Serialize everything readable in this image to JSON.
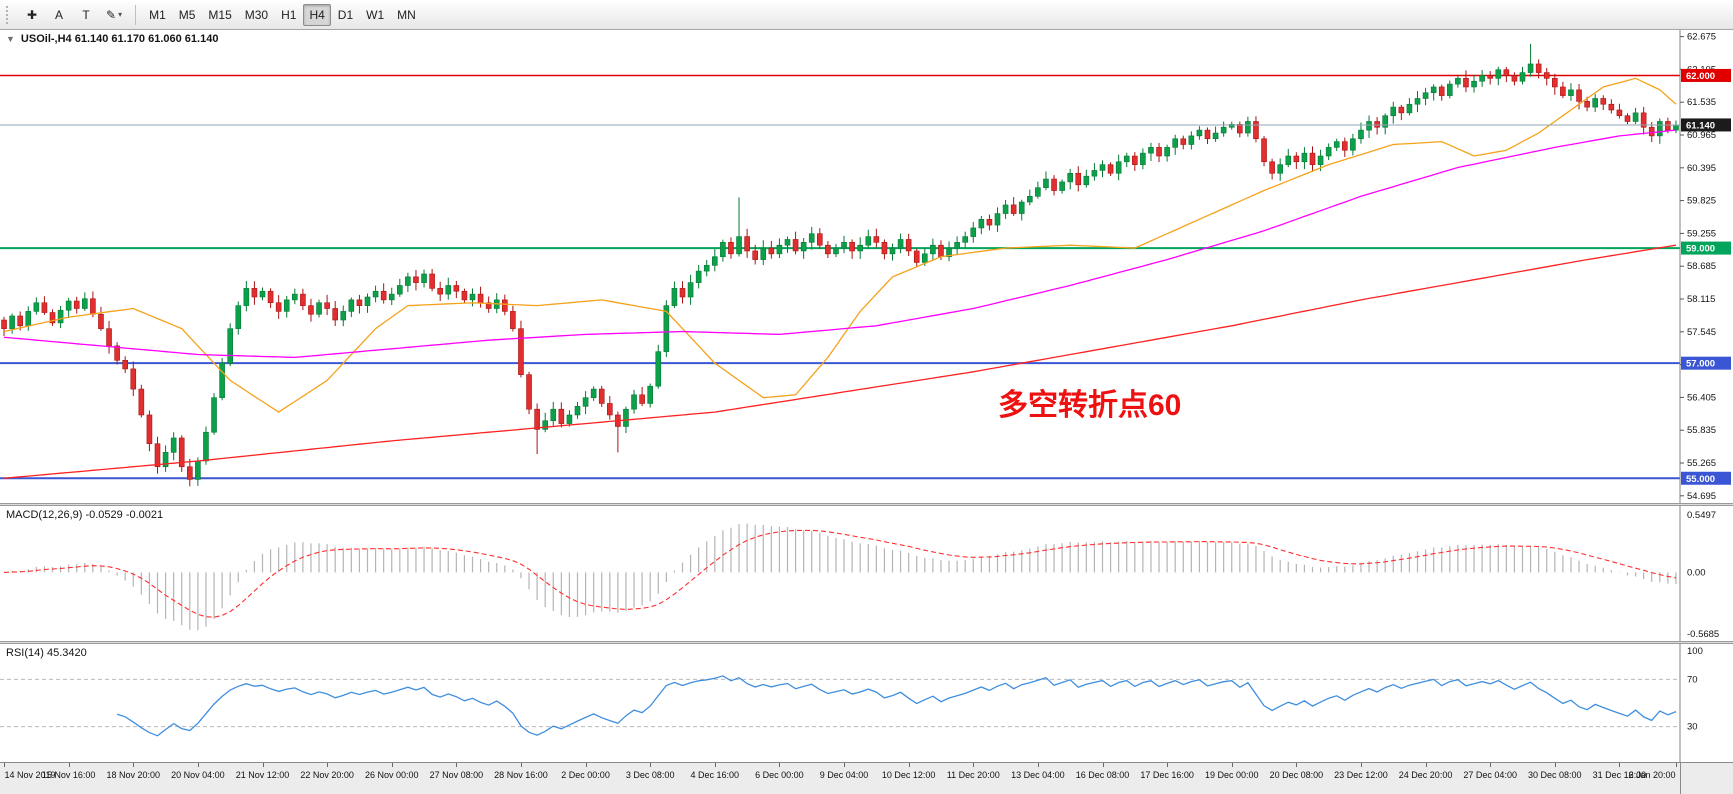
{
  "toolbar": {
    "tools": [
      {
        "name": "crosshair",
        "glyph": "✚",
        "dropdown": false
      },
      {
        "name": "text-annotation",
        "glyph": "A",
        "dropdown": false
      },
      {
        "name": "text-label",
        "glyph": "T",
        "dropdown": false
      },
      {
        "name": "draw-objects",
        "glyph": "✎",
        "dropdown": true
      }
    ],
    "dropdown_glyph": "▾",
    "timeframes": [
      "M1",
      "M5",
      "M15",
      "M30",
      "H1",
      "H4",
      "D1",
      "W1",
      "MN"
    ],
    "active_timeframe": "H4"
  },
  "chart": {
    "symbol_marker": "▼",
    "symbol_line": "USOil-,H4 61.140 61.170 61.060 61.140",
    "annotation": {
      "text": "多空转折点60",
      "color": "#ee1111"
    },
    "bid": {
      "value": 61.14,
      "label": "61.140",
      "badge_color": "#1b1b1b",
      "line_color": "#8fa3b5"
    },
    "levels": [
      {
        "value": 62.0,
        "label": "62.000",
        "color": "#e00000",
        "width": 1.5
      },
      {
        "value": 59.0,
        "label": "59.000",
        "color": "#00a45a",
        "width": 2
      },
      {
        "value": 57.0,
        "label": "57.000",
        "color": "#3a56d4",
        "width": 2
      },
      {
        "value": 55.0,
        "label": "55.000",
        "color": "#3a56d4",
        "width": 2
      }
    ],
    "price_axis_ticks": [
      "62.675",
      "62.105",
      "61.535",
      "60.965",
      "60.395",
      "59.825",
      "59.255",
      "58.685",
      "58.115",
      "57.545",
      "56.975",
      "56.405",
      "55.835",
      "55.265",
      "54.695"
    ]
  },
  "macd_panel": {
    "label": "MACD(12,26,9) -0.0529 -0.0021",
    "axis_labels": [
      "0.5497",
      "0.00",
      "-0.5685"
    ],
    "histogram_color": "#b4b4b4",
    "signal_color": "#ff2e2e"
  },
  "rsi_panel": {
    "label": "RSI(14) 45.3420",
    "axis_labels": [
      "100",
      "70",
      "30"
    ],
    "levels": [
      70,
      30
    ],
    "line_color": "#3f8ede"
  },
  "time_axis": {
    "labels": [
      "14 Nov 2019",
      "15 Nov 16:00",
      "18 Nov 20:00",
      "20 Nov 04:00",
      "21 Nov 12:00",
      "22 Nov 20:00",
      "26 Nov 00:00",
      "27 Nov 08:00",
      "28 Nov 16:00",
      "2 Dec 00:00",
      "3 Dec 08:00",
      "4 Dec 16:00",
      "6 Dec 00:00",
      "9 Dec 04:00",
      "10 Dec 12:00",
      "11 Dec 20:00",
      "13 Dec 04:00",
      "16 Dec 08:00",
      "17 Dec 16:00",
      "19 Dec 00:00",
      "20 Dec 08:00",
      "23 Dec 12:00",
      "24 Dec 20:00",
      "27 Dec 04:00",
      "30 Dec 08:00",
      "31 Dec 16:00",
      "2 Jan 20:00"
    ]
  },
  "chart_data": {
    "type": "candlestick",
    "symbol": "USOil",
    "timeframe": "H4",
    "title": "USOil-,H4",
    "price_range": [
      54.57,
      62.79
    ],
    "open_first": 57.75,
    "up_color": "#0ca04a",
    "up_border": "#067a36",
    "down_color": "#e12f2f",
    "down_border": "#a81414",
    "closes": [
      57.6,
      57.82,
      57.65,
      57.9,
      58.05,
      57.88,
      57.7,
      57.92,
      58.08,
      57.95,
      58.12,
      57.85,
      57.6,
      57.3,
      57.05,
      56.9,
      56.55,
      56.1,
      55.6,
      55.2,
      55.45,
      55.7,
      55.2,
      54.98,
      55.3,
      55.8,
      56.4,
      57.0,
      57.6,
      58.0,
      58.3,
      58.15,
      58.25,
      58.05,
      57.9,
      58.1,
      58.2,
      58.0,
      57.85,
      58.05,
      57.95,
      57.75,
      57.9,
      58.1,
      58.0,
      58.15,
      58.25,
      58.1,
      58.2,
      58.35,
      58.5,
      58.4,
      58.55,
      58.3,
      58.2,
      58.35,
      58.25,
      58.1,
      58.2,
      58.05,
      57.95,
      58.1,
      57.9,
      57.6,
      56.8,
      56.2,
      55.85,
      56.0,
      56.2,
      55.95,
      56.1,
      56.25,
      56.4,
      56.55,
      56.3,
      56.1,
      55.9,
      56.2,
      56.45,
      56.3,
      56.6,
      57.2,
      58.0,
      58.3,
      58.15,
      58.4,
      58.6,
      58.7,
      58.85,
      59.1,
      58.9,
      59.2,
      58.95,
      58.8,
      59.0,
      58.9,
      59.05,
      59.15,
      58.95,
      59.1,
      59.25,
      59.05,
      58.9,
      59.0,
      59.1,
      58.95,
      59.05,
      59.2,
      59.1,
      58.9,
      59.0,
      59.15,
      58.95,
      58.75,
      58.9,
      59.05,
      58.85,
      59.0,
      59.1,
      59.2,
      59.35,
      59.5,
      59.4,
      59.6,
      59.75,
      59.6,
      59.8,
      59.9,
      60.05,
      60.2,
      60.0,
      60.15,
      60.3,
      60.1,
      60.25,
      60.35,
      60.45,
      60.3,
      60.5,
      60.6,
      60.45,
      60.65,
      60.75,
      60.6,
      60.75,
      60.9,
      60.8,
      60.95,
      61.05,
      60.9,
      61.0,
      61.1,
      61.15,
      61.0,
      61.2,
      60.9,
      60.5,
      60.3,
      60.45,
      60.6,
      60.5,
      60.65,
      60.45,
      60.6,
      60.75,
      60.85,
      60.7,
      60.9,
      61.05,
      61.2,
      61.1,
      61.3,
      61.45,
      61.35,
      61.5,
      61.6,
      61.7,
      61.8,
      61.65,
      61.85,
      61.95,
      61.8,
      61.9,
      62.0,
      61.95,
      62.1,
      62.0,
      61.9,
      62.05,
      62.2,
      62.05,
      61.95,
      61.8,
      61.65,
      61.75,
      61.55,
      61.45,
      61.6,
      61.5,
      61.4,
      61.3,
      61.2,
      61.35,
      61.1,
      60.95,
      61.2,
      61.05,
      61.14
    ],
    "wick_overrides": {
      "23": {
        "low": 54.86
      },
      "66": {
        "low": 55.42
      },
      "76": {
        "low": 55.45
      },
      "91": {
        "high": 59.88
      },
      "189": {
        "high": 62.55
      }
    },
    "moving_averages": [
      {
        "name": "MA-fast",
        "color": "#f5a21b",
        "points": [
          [
            0,
            57.55
          ],
          [
            8,
            57.8
          ],
          [
            16,
            57.95
          ],
          [
            22,
            57.6
          ],
          [
            28,
            56.7
          ],
          [
            34,
            56.15
          ],
          [
            40,
            56.7
          ],
          [
            46,
            57.6
          ],
          [
            50,
            58.0
          ],
          [
            58,
            58.05
          ],
          [
            66,
            58.0
          ],
          [
            74,
            58.1
          ],
          [
            82,
            57.9
          ],
          [
            88,
            57.0
          ],
          [
            94,
            56.4
          ],
          [
            98,
            56.45
          ],
          [
            102,
            57.1
          ],
          [
            106,
            57.9
          ],
          [
            110,
            58.5
          ],
          [
            116,
            58.85
          ],
          [
            124,
            59.0
          ],
          [
            132,
            59.05
          ],
          [
            140,
            59.0
          ],
          [
            148,
            59.5
          ],
          [
            156,
            60.0
          ],
          [
            164,
            60.45
          ],
          [
            172,
            60.8
          ],
          [
            178,
            60.85
          ],
          [
            182,
            60.6
          ],
          [
            186,
            60.7
          ],
          [
            190,
            61.0
          ],
          [
            194,
            61.4
          ],
          [
            198,
            61.8
          ],
          [
            202,
            61.95
          ],
          [
            205,
            61.75
          ],
          [
            207,
            61.5
          ]
        ]
      },
      {
        "name": "MA-mid",
        "color": "#ff00ff",
        "points": [
          [
            0,
            57.45
          ],
          [
            12,
            57.3
          ],
          [
            24,
            57.15
          ],
          [
            36,
            57.1
          ],
          [
            48,
            57.25
          ],
          [
            60,
            57.4
          ],
          [
            72,
            57.5
          ],
          [
            84,
            57.55
          ],
          [
            96,
            57.5
          ],
          [
            108,
            57.65
          ],
          [
            120,
            57.95
          ],
          [
            132,
            58.35
          ],
          [
            144,
            58.8
          ],
          [
            156,
            59.3
          ],
          [
            168,
            59.9
          ],
          [
            180,
            60.4
          ],
          [
            192,
            60.75
          ],
          [
            200,
            60.95
          ],
          [
            207,
            61.05
          ]
        ]
      },
      {
        "name": "MA-slow",
        "color": "#ff2222",
        "points": [
          [
            0,
            55.0
          ],
          [
            24,
            55.3
          ],
          [
            48,
            55.65
          ],
          [
            72,
            55.95
          ],
          [
            88,
            56.15
          ],
          [
            104,
            56.5
          ],
          [
            120,
            56.85
          ],
          [
            136,
            57.25
          ],
          [
            152,
            57.65
          ],
          [
            168,
            58.1
          ],
          [
            184,
            58.5
          ],
          [
            196,
            58.8
          ],
          [
            207,
            59.05
          ]
        ]
      }
    ],
    "horizontal_lines": [
      62.0,
      59.0,
      57.0,
      55.0
    ],
    "bid": 61.14,
    "indicators": {
      "macd": {
        "fast": 12,
        "slow": 26,
        "signal": 9,
        "value": -0.0529,
        "signal_value": -0.0021,
        "range": [
          -0.5685,
          0.5497
        ]
      },
      "rsi": {
        "period": 14,
        "value": 45.342,
        "levels": [
          70,
          30
        ],
        "range": [
          0,
          100
        ]
      }
    }
  }
}
